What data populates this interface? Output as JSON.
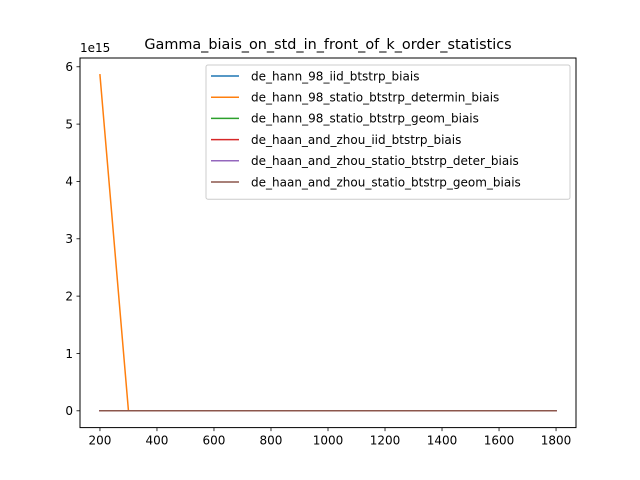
{
  "chart_data": {
    "type": "line",
    "title": "Gamma_biais_on_std_in_front_of_k_order_statistics",
    "xlabel": "",
    "ylabel": "",
    "y_offset_label": "1e15",
    "y_scale": 1000000000000000.0,
    "xlim": [
      130,
      1870
    ],
    "ylim": [
      -0.293,
      6.153
    ],
    "xticks": [
      200,
      400,
      600,
      800,
      1000,
      1200,
      1400,
      1600,
      1800
    ],
    "yticks": [
      0,
      1,
      2,
      3,
      4,
      5,
      6
    ],
    "grid": false,
    "legend_position": "upper right",
    "x": [
      200,
      300,
      400,
      500,
      600,
      700,
      800,
      900,
      1000,
      1100,
      1200,
      1300,
      1400,
      1500,
      1600,
      1700,
      1800
    ],
    "series": [
      {
        "name": "de_hann_98_iid_btstrp_biais",
        "color": "#1f77b4",
        "values": [
          0,
          0,
          0,
          0,
          0,
          0,
          0,
          0,
          0,
          0,
          0,
          0,
          0,
          0,
          0,
          0,
          0
        ]
      },
      {
        "name": "de_hann_98_statio_btstrp_determin_biais",
        "color": "#ff7f0e",
        "values": [
          5.86,
          0,
          0,
          0,
          0,
          0,
          0,
          0,
          0,
          0,
          0,
          0,
          0,
          0,
          0,
          0,
          0
        ]
      },
      {
        "name": "de_hann_98_statio_btstrp_geom_biais",
        "color": "#2ca02c",
        "values": [
          0,
          0,
          0,
          0,
          0,
          0,
          0,
          0,
          0,
          0,
          0,
          0,
          0,
          0,
          0,
          0,
          0
        ]
      },
      {
        "name": "de_haan_and_zhou_iid_btstrp_biais",
        "color": "#d62728",
        "values": [
          0,
          0,
          0,
          0,
          0,
          0,
          0,
          0,
          0,
          0,
          0,
          0,
          0,
          0,
          0,
          0,
          0
        ]
      },
      {
        "name": "de_haan_and_zhou_statio_btstrp_deter_biais",
        "color": "#9467bd",
        "values": [
          0,
          0,
          0,
          0,
          0,
          0,
          0,
          0,
          0,
          0,
          0,
          0,
          0,
          0,
          0,
          0,
          0
        ]
      },
      {
        "name": "de_haan_and_zhou_statio_btstrp_geom_biais",
        "color": "#8c564b",
        "values": [
          0,
          0,
          0,
          0,
          0,
          0,
          0,
          0,
          0,
          0,
          0,
          0,
          0,
          0,
          0,
          0,
          0
        ]
      }
    ]
  }
}
